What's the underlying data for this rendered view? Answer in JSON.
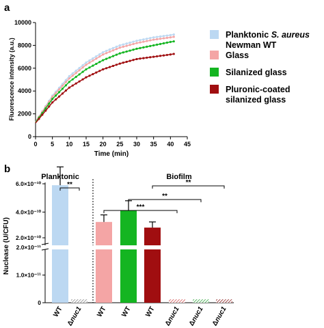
{
  "chart_data": [
    {
      "panel": "a",
      "type": "line",
      "xlabel": "Time (min)",
      "ylabel": "Fluorescence intensity (a.u.)",
      "xlim": [
        0,
        45
      ],
      "ylim": [
        0,
        10000
      ],
      "xticks": [
        "0",
        "5",
        "10",
        "15",
        "20",
        "25",
        "30",
        "35",
        "40",
        "45"
      ],
      "yticks": [
        "0",
        "2000",
        "4000",
        "6000",
        "8000",
        "10000"
      ],
      "legend_position": "right",
      "series": [
        {
          "name_parts": [
            "Planktonic ",
            "S. aureus",
            " Newman WT"
          ],
          "color": "#bcd8f2",
          "x": [
            0,
            5,
            10,
            15,
            20,
            25,
            30,
            35,
            40,
            41
          ],
          "y": [
            1300,
            3600,
            5300,
            6500,
            7400,
            8000,
            8400,
            8700,
            8900,
            8950
          ]
        },
        {
          "name": "Glass",
          "color": "#f4a5a5",
          "x": [
            0,
            5,
            10,
            15,
            20,
            25,
            30,
            35,
            40,
            41
          ],
          "y": [
            1300,
            3500,
            5100,
            6300,
            7200,
            7800,
            8200,
            8500,
            8700,
            8750
          ]
        },
        {
          "name": "Silanized glass",
          "color": "#14b521",
          "x": [
            0,
            5,
            10,
            15,
            20,
            25,
            30,
            35,
            40,
            41
          ],
          "y": [
            1250,
            3300,
            4800,
            5900,
            6700,
            7300,
            7700,
            8000,
            8300,
            8350
          ]
        },
        {
          "name": "Pluronic-coated silanized glass",
          "name_lines": [
            "Pluronic-coated",
            "silanized glass"
          ],
          "color": "#a00e10",
          "x": [
            0,
            5,
            10,
            15,
            20,
            25,
            30,
            35,
            40,
            41
          ],
          "y": [
            1200,
            3000,
            4300,
            5200,
            5900,
            6400,
            6800,
            7000,
            7200,
            7250
          ]
        }
      ]
    },
    {
      "panel": "b",
      "type": "bar",
      "ylabel": "Nuclease (U/CFU)",
      "yticks": [
        "0",
        "1.0×10⁻¹¹",
        "2.0×10⁻¹¹",
        "2.0×10⁻¹⁰",
        "4.0×10⁻¹⁰",
        "6.0×10⁻¹⁰"
      ],
      "y_axis_broken": true,
      "group_labels": [
        "Planktonic",
        "Biofilm"
      ],
      "categories": [
        "WT",
        "Δnuc1",
        "WT",
        "WT",
        "WT",
        "Δnuc1",
        "Δnuc1",
        "Δnuc1"
      ],
      "values": [
        5.9e-10,
        5e-13,
        3.3e-10,
        4.1e-10,
        2.9e-10,
        5e-13,
        5e-13,
        5e-13
      ],
      "errors": [
        1.3e-10,
        0,
        5e-11,
        7e-11,
        4e-11,
        0,
        0,
        0
      ],
      "colors": [
        "#bcd8f2",
        "#cccccc",
        "#f4a5a5",
        "#14b521",
        "#a00e10",
        "#f4a5a5",
        "#14b521",
        "#a00e10"
      ],
      "significance": [
        {
          "from": 0,
          "to": 1,
          "label": "**"
        },
        {
          "from": 2,
          "to": 5,
          "label": "***"
        },
        {
          "from": 3,
          "to": 6,
          "label": "**"
        },
        {
          "from": 4,
          "to": 7,
          "label": "**"
        }
      ]
    }
  ],
  "panel_labels": {
    "a": "a",
    "b": "b"
  }
}
